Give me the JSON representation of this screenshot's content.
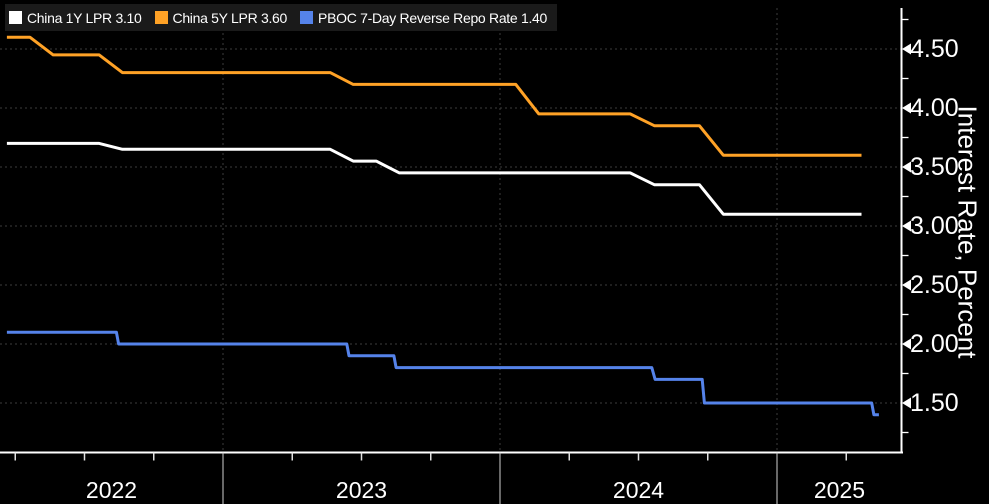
{
  "chart_data": {
    "type": "line",
    "title": "",
    "xlabel": "",
    "ylabel": "Interest Rate, Percent",
    "x_format": "decimal_year",
    "xlim": [
      2022.195,
      2025.451
    ],
    "ylim": [
      1.08,
      4.85
    ],
    "grid": "dashed horizontal at major y ticks, dashed vertical at year boundaries",
    "legend_position": "top-left",
    "y_tick_values": [
      4.5,
      4.0,
      3.5,
      3.0,
      2.5,
      2.0,
      1.5
    ],
    "y_tick_labels": [
      "4.50",
      "4.00",
      "3.50",
      "3.00",
      "2.50",
      "2.00",
      "1.50"
    ],
    "y_minor_ticks": [
      4.75,
      4.25,
      3.75,
      3.25,
      2.75,
      2.25,
      1.75,
      1.25
    ],
    "year_boundaries": [
      2023,
      2024,
      2025
    ],
    "year_labels": [
      "2022",
      "2023",
      "2024",
      "2025"
    ],
    "series": [
      {
        "name": "China 1Y LPR",
        "value_label": "3.10",
        "legend_label": "China 1Y LPR 3.10",
        "color": "#FFFFFF",
        "points": [
          [
            2022.22,
            3.7
          ],
          [
            2022.553,
            3.7
          ],
          [
            2022.637,
            3.65
          ],
          [
            2023.387,
            3.65
          ],
          [
            2023.47,
            3.55
          ],
          [
            2023.553,
            3.55
          ],
          [
            2023.637,
            3.45
          ],
          [
            2024.47,
            3.45
          ],
          [
            2024.557,
            3.35
          ],
          [
            2024.72,
            3.35
          ],
          [
            2024.806,
            3.1
          ],
          [
            2025.305,
            3.1
          ]
        ]
      },
      {
        "name": "China 5Y LPR",
        "value_label": "3.60",
        "legend_label": "China 5Y LPR 3.60",
        "color": "#FFA226",
        "points": [
          [
            2022.22,
            4.6
          ],
          [
            2022.303,
            4.6
          ],
          [
            2022.387,
            4.45
          ],
          [
            2022.553,
            4.45
          ],
          [
            2022.637,
            4.3
          ],
          [
            2023.387,
            4.3
          ],
          [
            2023.47,
            4.2
          ],
          [
            2024.057,
            4.2
          ],
          [
            2024.14,
            3.95
          ],
          [
            2024.47,
            3.95
          ],
          [
            2024.557,
            3.85
          ],
          [
            2024.72,
            3.85
          ],
          [
            2024.806,
            3.6
          ],
          [
            2025.305,
            3.6
          ]
        ]
      },
      {
        "name": "PBOC 7-Day Reverse Repo Rate",
        "value_label": "1.40",
        "legend_label": "PBOC 7-Day Reverse Repo Rate 1.40",
        "color": "#5583EA",
        "points": [
          [
            2022.22,
            2.1
          ],
          [
            2022.615,
            2.1
          ],
          [
            2022.623,
            2.0
          ],
          [
            2023.447,
            2.0
          ],
          [
            2023.455,
            1.9
          ],
          [
            2023.617,
            1.9
          ],
          [
            2023.625,
            1.8
          ],
          [
            2024.548,
            1.8
          ],
          [
            2024.56,
            1.7
          ],
          [
            2024.73,
            1.7
          ],
          [
            2024.738,
            1.5
          ],
          [
            2025.342,
            1.5
          ],
          [
            2025.35,
            1.4
          ],
          [
            2025.368,
            1.4
          ]
        ]
      }
    ]
  }
}
